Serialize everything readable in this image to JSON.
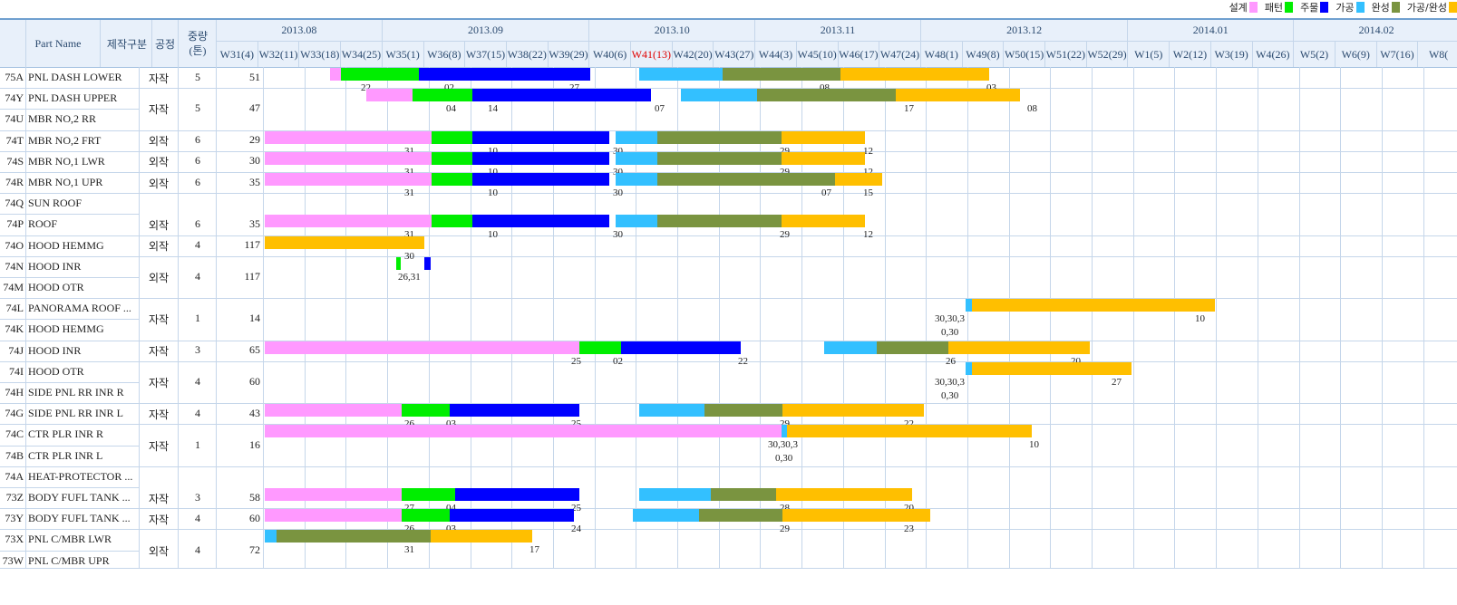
{
  "legend": [
    {
      "label": "설계",
      "color": "#ff99ff"
    },
    {
      "label": "패턴",
      "color": "#00ee00"
    },
    {
      "label": "주물",
      "color": "#0000ff"
    },
    {
      "label": "가공",
      "color": "#33c0ff"
    },
    {
      "label": "완성",
      "color": "#7a9440"
    },
    {
      "label": "가공/완성",
      "color": "#ffbf00"
    }
  ],
  "colors": {
    "design": "#ff99ff",
    "pattern": "#00ee00",
    "casting": "#0000ff",
    "machining": "#33c0ff",
    "finish": "#7a9440",
    "machfin": "#ffbf00"
  },
  "header": {
    "part_name": "Part Name",
    "type": "제작구분",
    "process": "공정",
    "weight": "중량\n(톤)"
  },
  "months": [
    {
      "label": "2013.08",
      "weeks": 4
    },
    {
      "label": "2013.09",
      "weeks": 5
    },
    {
      "label": "2013.10",
      "weeks": 4
    },
    {
      "label": "2013.11",
      "weeks": 4
    },
    {
      "label": "2013.12",
      "weeks": 5
    },
    {
      "label": "2014.01",
      "weeks": 4
    },
    {
      "label": "2014.02",
      "weeks": 4
    }
  ],
  "weeks": [
    "W31(4)",
    "W32(11)",
    "W33(18)",
    "W34(25)",
    "W35(1)",
    "W36(8)",
    "W37(15)",
    "W38(22)",
    "W39(29)",
    "W40(6)",
    "W41(13)",
    "W42(20)",
    "W43(27)",
    "W44(3)",
    "W45(10)",
    "W46(17)",
    "W47(24)",
    "W48(1)",
    "W49(8)",
    "W50(15)",
    "W51(22)",
    "W52(29)",
    "W1(5)",
    "W2(12)",
    "W3(19)",
    "W4(26)",
    "W5(2)",
    "W6(9)",
    "W7(16)",
    "W8("
  ],
  "highlight_week": "W41(13)",
  "parts": [
    {
      "code": "75A",
      "name": "PNL DASH LOWER"
    },
    {
      "code": "74Y",
      "name": "PNL DASH UPPER"
    },
    {
      "code": "74U",
      "name": "MBR NO,2 RR"
    },
    {
      "code": "74T",
      "name": "MBR NO,2 FRT"
    },
    {
      "code": "74S",
      "name": "MBR NO,1 LWR"
    },
    {
      "code": "74R",
      "name": "MBR NO,1 UPR"
    },
    {
      "code": "74Q",
      "name": "SUN ROOF"
    },
    {
      "code": "74P",
      "name": "ROOF"
    },
    {
      "code": "74O",
      "name": "HOOD HEMMG"
    },
    {
      "code": "74N",
      "name": "HOOD INR"
    },
    {
      "code": "74M",
      "name": "HOOD OTR"
    },
    {
      "code": "74L",
      "name": "PANORAMA ROOF ..."
    },
    {
      "code": "74K",
      "name": "HOOD HEMMG"
    },
    {
      "code": "74J",
      "name": "HOOD INR"
    },
    {
      "code": "74I",
      "name": "HOOD OTR"
    },
    {
      "code": "74H",
      "name": "SIDE PNL RR INR R"
    },
    {
      "code": "74G",
      "name": "SIDE PNL RR INR L"
    },
    {
      "code": "74C",
      "name": "CTR PLR INR R"
    },
    {
      "code": "74B",
      "name": "CTR PLR INR L"
    },
    {
      "code": "74A",
      "name": "HEAT-PROTECTOR ..."
    },
    {
      "code": "73Z",
      "name": "BODY FUFL TANK ..."
    },
    {
      "code": "73Y",
      "name": "BODY FUFL TANK ..."
    },
    {
      "code": "73X",
      "name": "PNL C/MBR LWR"
    },
    {
      "code": "73W",
      "name": "PNL C/MBR UPR"
    }
  ],
  "rows": [
    {
      "type": "자작",
      "process": "5",
      "weight": "51",
      "span": [
        0,
        1
      ],
      "bars": [
        [
          "design",
          364,
          376
        ],
        [
          "pattern",
          376,
          462
        ],
        [
          "casting",
          462,
          651
        ],
        [
          "machining",
          705,
          797
        ],
        [
          "finish",
          797,
          927
        ],
        [
          "machfin",
          927,
          1091
        ]
      ],
      "labels": [
        [
          "22",
          398
        ],
        [
          "02",
          490
        ],
        [
          "27",
          628
        ],
        [
          "08",
          904
        ],
        [
          "03",
          1088
        ]
      ]
    },
    {
      "type": "자작",
      "process": "5",
      "weight": "47",
      "span": [
        1,
        3
      ],
      "bars": [
        [
          "design",
          404,
          455
        ],
        [
          "pattern",
          455,
          521
        ],
        [
          "casting",
          521,
          718
        ],
        [
          "machining",
          751,
          835
        ],
        [
          "finish",
          835,
          988
        ],
        [
          "machfin",
          988,
          1125
        ]
      ],
      "labels": [
        [
          "04",
          492
        ],
        [
          "14",
          538
        ],
        [
          "07",
          722
        ],
        [
          "17",
          997
        ],
        [
          "08",
          1133
        ]
      ]
    },
    {
      "type": "외작",
      "process": "6",
      "weight": "29",
      "span": [
        3,
        4
      ],
      "bars": [
        [
          "design",
          292,
          476
        ],
        [
          "pattern",
          476,
          521
        ],
        [
          "casting",
          521,
          672
        ],
        [
          "machining",
          679,
          725
        ],
        [
          "finish",
          725,
          862
        ],
        [
          "machfin",
          862,
          954
        ]
      ],
      "labels": [
        [
          "31",
          446
        ],
        [
          "10",
          538
        ],
        [
          "30",
          676
        ],
        [
          "29",
          860
        ],
        [
          "12",
          952
        ]
      ]
    },
    {
      "type": "외작",
      "process": "6",
      "weight": "30",
      "span": [
        4,
        5
      ],
      "bars": [
        [
          "design",
          292,
          476
        ],
        [
          "pattern",
          476,
          521
        ],
        [
          "casting",
          521,
          672
        ],
        [
          "machining",
          679,
          725
        ],
        [
          "finish",
          725,
          862
        ],
        [
          "machfin",
          862,
          954
        ]
      ],
      "labels": [
        [
          "31",
          446
        ],
        [
          "10",
          538
        ],
        [
          "30",
          676
        ],
        [
          "29",
          860
        ],
        [
          "12",
          952
        ]
      ]
    },
    {
      "type": "외작",
      "process": "6",
      "weight": "35",
      "span": [
        5,
        6
      ],
      "bars": [
        [
          "design",
          292,
          476
        ],
        [
          "pattern",
          476,
          521
        ],
        [
          "casting",
          521,
          672
        ],
        [
          "machining",
          679,
          725
        ],
        [
          "finish",
          725,
          921
        ],
        [
          "machfin",
          921,
          973
        ]
      ],
      "labels": [
        [
          "31",
          446
        ],
        [
          "10",
          538
        ],
        [
          "30",
          676
        ],
        [
          "07",
          906
        ],
        [
          "15",
          952
        ]
      ]
    },
    {
      "type": "외작",
      "process": "6",
      "weight": "35",
      "span": [
        7,
        8
      ],
      "bars": [
        [
          "design",
          292,
          476
        ],
        [
          "pattern",
          476,
          521
        ],
        [
          "casting",
          521,
          672
        ],
        [
          "machining",
          679,
          725
        ],
        [
          "finish",
          725,
          862
        ],
        [
          "machfin",
          862,
          954
        ]
      ],
      "labels": [
        [
          "31",
          446
        ],
        [
          "10",
          538
        ],
        [
          "30",
          676
        ],
        [
          "29",
          860
        ],
        [
          "12",
          952
        ]
      ]
    },
    {
      "type": "외작",
      "process": "4",
      "weight": "117",
      "span": [
        8,
        9
      ],
      "bars": [
        [
          "machfin",
          292,
          468
        ]
      ],
      "labels": [
        [
          "30",
          446
        ]
      ]
    },
    {
      "type": "외작",
      "process": "4",
      "weight": "117",
      "span": [
        9,
        11
      ],
      "bars": [
        [
          "pattern",
          437,
          442
        ],
        [
          "casting",
          468,
          475
        ]
      ],
      "labels": [
        [
          "26,31",
          439
        ]
      ]
    },
    {
      "type": "자작",
      "process": "1",
      "weight": "14",
      "span": [
        11,
        13
      ],
      "bars": [
        [
          "machining",
          1065,
          1072
        ],
        [
          "machfin",
          1072,
          1340
        ]
      ],
      "labels": [
        [
          "30,30,3",
          1031
        ],
        [
          "0,30",
          1038
        ],
        [
          "10",
          1318
        ]
      ]
    },
    {
      "type": "자작",
      "process": "3",
      "weight": "65",
      "span": [
        13,
        14
      ],
      "bars": [
        [
          "design",
          292,
          639
        ],
        [
          "pattern",
          639,
          685
        ],
        [
          "casting",
          685,
          817
        ],
        [
          "machining",
          909,
          967
        ],
        [
          "finish",
          967,
          1046
        ],
        [
          "machfin",
          1046,
          1202
        ]
      ],
      "labels": [
        [
          "25",
          630
        ],
        [
          "02",
          676
        ],
        [
          "22",
          814
        ],
        [
          "26",
          1043
        ],
        [
          "20",
          1181
        ]
      ]
    },
    {
      "type": "자작",
      "process": "4",
      "weight": "60",
      "span": [
        14,
        16
      ],
      "bars": [
        [
          "machining",
          1065,
          1072
        ],
        [
          "machfin",
          1072,
          1248
        ]
      ],
      "labels": [
        [
          "30,30,3",
          1031
        ],
        [
          "0,30",
          1038
        ],
        [
          "27",
          1226
        ]
      ]
    },
    {
      "type": "자작",
      "process": "4",
      "weight": "43",
      "span": [
        16,
        17
      ],
      "bars": [
        [
          "design",
          292,
          443
        ],
        [
          "pattern",
          443,
          496
        ],
        [
          "casting",
          496,
          639
        ],
        [
          "machining",
          705,
          777
        ],
        [
          "finish",
          777,
          863
        ],
        [
          "machfin",
          863,
          1019
        ]
      ],
      "labels": [
        [
          "26",
          446
        ],
        [
          "03",
          492
        ],
        [
          "25",
          630
        ],
        [
          "29",
          860
        ],
        [
          "22",
          997
        ]
      ]
    },
    {
      "type": "자작",
      "process": "1",
      "weight": "16",
      "span": [
        17,
        19
      ],
      "bars": [
        [
          "design",
          292,
          843
        ],
        [
          "design",
          843,
          862
        ],
        [
          "machining",
          862,
          868
        ],
        [
          "machfin",
          868,
          888
        ],
        [
          "machfin",
          888,
          1138
        ]
      ],
      "labels": [
        [
          "30,30,3",
          847
        ],
        [
          "0,30",
          855
        ],
        [
          "10",
          1135
        ]
      ]
    },
    {
      "type": "자작",
      "process": "3",
      "weight": "58",
      "span": [
        20,
        21
      ],
      "bars": [
        [
          "design",
          292,
          443
        ],
        [
          "pattern",
          443,
          502
        ],
        [
          "casting",
          502,
          639
        ],
        [
          "machining",
          705,
          784
        ],
        [
          "finish",
          784,
          856
        ],
        [
          "machfin",
          856,
          1006
        ]
      ],
      "labels": [
        [
          "27",
          446
        ],
        [
          "04",
          492
        ],
        [
          "25",
          630
        ],
        [
          "28",
          860
        ],
        [
          "20",
          997
        ]
      ]
    },
    {
      "type": "자작",
      "process": "4",
      "weight": "60",
      "span": [
        21,
        22
      ],
      "bars": [
        [
          "design",
          292,
          443
        ],
        [
          "pattern",
          443,
          496
        ],
        [
          "casting",
          496,
          633
        ],
        [
          "machining",
          698,
          771
        ],
        [
          "finish",
          771,
          863
        ],
        [
          "machfin",
          863,
          1026
        ]
      ],
      "labels": [
        [
          "26",
          446
        ],
        [
          "03",
          492
        ],
        [
          "24",
          630
        ],
        [
          "29",
          860
        ],
        [
          "23",
          997
        ]
      ]
    },
    {
      "type": "외작",
      "process": "4",
      "weight": "72",
      "span": [
        22,
        24
      ],
      "bars": [
        [
          "machining",
          292,
          305
        ],
        [
          "finish",
          305,
          475
        ],
        [
          "machfin",
          475,
          587
        ]
      ],
      "labels": [
        [
          "31",
          446
        ],
        [
          "17",
          584
        ]
      ]
    }
  ]
}
